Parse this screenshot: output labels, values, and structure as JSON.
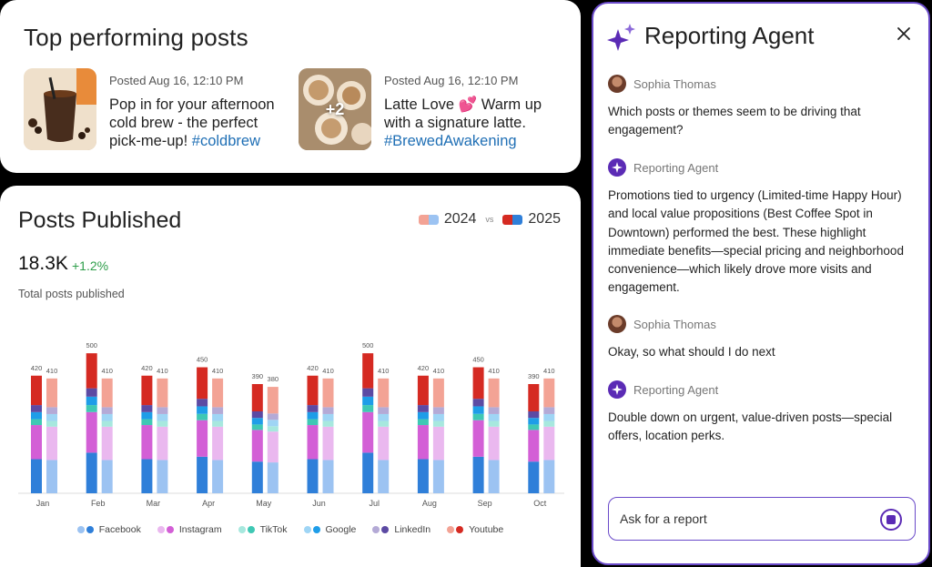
{
  "top_posts": {
    "title": "Top performing posts",
    "posts": [
      {
        "meta": "Posted Aug 16, 12:10 PM",
        "text": "Pop in for your afternoon cold brew - the perfect pick-me-up! ",
        "tag": "#coldbrew",
        "extra": ""
      },
      {
        "meta": "Posted Aug 16, 12:10 PM",
        "text": "Latte Love 💕 Warm up with a signature latte. ",
        "tag": "#BrewedAwakening",
        "extra": "+2"
      }
    ]
  },
  "posts_published": {
    "title": "Posts Published",
    "legend_2024": "2024",
    "legend_vs": "vs",
    "legend_2025": "2025",
    "total_value": "18.3K",
    "total_delta": "+1.2%",
    "total_label": "Total posts published"
  },
  "chart_data": {
    "type": "bar",
    "stacked": true,
    "categories": [
      "Jan",
      "Feb",
      "Mar",
      "Apr",
      "May",
      "Jun",
      "Jul",
      "Aug",
      "Sep",
      "Oct"
    ],
    "totals_2025": [
      420,
      500,
      420,
      450,
      390,
      420,
      500,
      420,
      450,
      390
    ],
    "totals_2024": [
      410,
      410,
      410,
      410,
      380,
      410,
      410,
      410,
      410,
      410
    ],
    "segments": [
      "Facebook",
      "Instagram",
      "TikTok",
      "Google",
      "LinkedIn",
      "Youtube"
    ],
    "share": [
      0.29,
      0.29,
      0.05,
      0.06,
      0.06,
      0.25
    ],
    "colors_2025": [
      "#2f7fd9",
      "#d35fd6",
      "#3fc8b4",
      "#1e9de8",
      "#5c4aa3",
      "#d52a22"
    ],
    "colors_2024": [
      "#9cc3f2",
      "#eab8ef",
      "#a7e8de",
      "#9fd5f5",
      "#b4aad6",
      "#f3a395"
    ],
    "ylim": [
      0,
      520
    ],
    "legend": [
      {
        "label": "Facebook",
        "c1": "#9cc3f2",
        "c2": "#2f7fd9"
      },
      {
        "label": "Instagram",
        "c1": "#eab8ef",
        "c2": "#d35fd6"
      },
      {
        "label": "TikTok",
        "c1": "#a7e8de",
        "c2": "#3fc8b4"
      },
      {
        "label": "Google",
        "c1": "#9fd5f5",
        "c2": "#1e9de8"
      },
      {
        "label": "LinkedIn",
        "c1": "#b4aad6",
        "c2": "#5c4aa3"
      },
      {
        "label": "Youtube",
        "c1": "#f3a395",
        "c2": "#d52a22"
      }
    ]
  },
  "agent": {
    "title": "Reporting Agent",
    "messages": [
      {
        "author": "Sophia Thomas",
        "role": "user",
        "text": "Which posts or themes seem to be driving that engagement?"
      },
      {
        "author": "Reporting Agent",
        "role": "agent",
        "text": "Promotions tied to urgency (Limited-time Happy Hour) and local value propositions (Best Coffee Spot in Downtown) performed the best. These highlight immediate benefits—special pricing and neighborhood convenience—which likely drove more visits and engagement."
      },
      {
        "author": "Sophia Thomas",
        "role": "user",
        "text": "Okay, so what should I do next"
      },
      {
        "author": "Reporting Agent",
        "role": "agent",
        "text": "Double down on urgent, value-driven posts—special offers, location perks."
      }
    ],
    "input_placeholder": "Ask for a report"
  },
  "colors": {
    "accent": "#5b2bb5",
    "border": "#6a4ac9",
    "hashtag": "#1f6fb5",
    "delta": "#2e9e4a"
  }
}
